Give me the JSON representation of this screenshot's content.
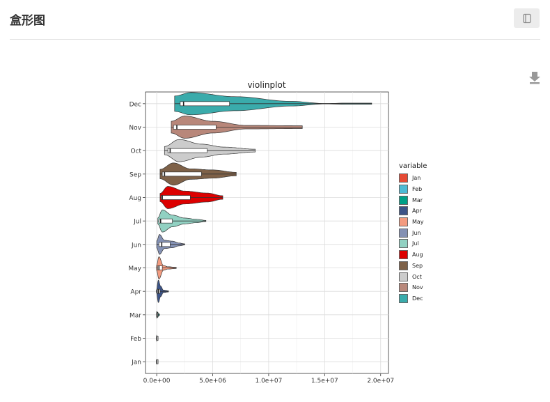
{
  "page": {
    "title": "盒形图"
  },
  "icons": {
    "notebook": "notebook-icon",
    "download": "download-icon"
  },
  "chart_data": {
    "type": "violin",
    "orientation": "horizontal",
    "title": "violinplot",
    "xlabel": "",
    "ylabel": "",
    "xlim": [
      -1000000,
      20700000
    ],
    "x_ticks": [
      0,
      5000000,
      10000000,
      15000000,
      20000000
    ],
    "x_tick_labels": [
      "0.0e+00",
      "5.0e+06",
      "1.0e+07",
      "1.5e+07",
      "2.0e+07"
    ],
    "categories": [
      "Jan",
      "Feb",
      "Mar",
      "Apr",
      "May",
      "Jun",
      "Jul",
      "Aug",
      "Sep",
      "Oct",
      "Nov",
      "Dec"
    ],
    "legend_title": "variable",
    "legend_position": "right",
    "grid": true,
    "colors": {
      "Jan": "#E64B35",
      "Feb": "#4DBBD5",
      "Mar": "#00A087",
      "Apr": "#3C5488",
      "May": "#F39B7F",
      "Jun": "#8491B4",
      "Jul": "#91D1C2",
      "Aug": "#DC0000",
      "Sep": "#7E6148",
      "Oct": "#CCCCCC",
      "Nov": "#B8877A",
      "Dec": "#3AABAB"
    },
    "series": [
      {
        "name": "Jan",
        "min": -10000,
        "q1": 0,
        "median": 5000,
        "q3": 20000,
        "max": 60000,
        "density": [
          [
            0,
            0.2
          ],
          [
            30000,
            0.1
          ],
          [
            60000,
            0.05
          ]
        ]
      },
      {
        "name": "Feb",
        "min": -10000,
        "q1": 0,
        "median": 8000,
        "q3": 30000,
        "max": 90000,
        "density": [
          [
            0,
            0.25
          ],
          [
            40000,
            0.12
          ],
          [
            90000,
            0.05
          ]
        ]
      },
      {
        "name": "Mar",
        "min": -20000,
        "q1": 0,
        "median": 30000,
        "q3": 80000,
        "max": 250000,
        "density": [
          [
            0,
            0.28
          ],
          [
            80000,
            0.22
          ],
          [
            160000,
            0.1
          ],
          [
            250000,
            0.05
          ]
        ]
      },
      {
        "name": "Apr",
        "min": -30000,
        "q1": 50000,
        "median": 150000,
        "q3": 300000,
        "max": 1050000,
        "density": [
          [
            -30000,
            0.1
          ],
          [
            150000,
            0.95
          ],
          [
            350000,
            0.45
          ],
          [
            600000,
            0.1
          ],
          [
            1050000,
            0.05
          ]
        ]
      },
      {
        "name": "May",
        "min": -20000,
        "q1": 80000,
        "median": 200000,
        "q3": 500000,
        "max": 1750000,
        "density": [
          [
            -20000,
            0.2
          ],
          [
            200000,
            0.95
          ],
          [
            600000,
            0.2
          ],
          [
            1000000,
            0.1
          ],
          [
            1750000,
            0.05
          ]
        ]
      },
      {
        "name": "Jun",
        "min": 0,
        "q1": 200000,
        "median": 450000,
        "q3": 1200000,
        "max": 2500000,
        "density": [
          [
            0,
            0.3
          ],
          [
            250000,
            0.85
          ],
          [
            700000,
            0.35
          ],
          [
            1400000,
            0.28
          ],
          [
            2000000,
            0.12
          ],
          [
            2500000,
            0.05
          ]
        ]
      },
      {
        "name": "Jul",
        "min": 100000,
        "q1": 200000,
        "median": 350000,
        "q3": 1400000,
        "max": 4400000,
        "density": [
          [
            100000,
            0.25
          ],
          [
            500000,
            0.95
          ],
          [
            1400000,
            0.5
          ],
          [
            2500000,
            0.25
          ],
          [
            3500000,
            0.15
          ],
          [
            4400000,
            0.05
          ]
        ]
      },
      {
        "name": "Aug",
        "min": 300000,
        "q1": 400000,
        "median": 500000,
        "q3": 3000000,
        "max": 5900000,
        "density": [
          [
            300000,
            0.35
          ],
          [
            1000000,
            0.95
          ],
          [
            2500000,
            0.55
          ],
          [
            4500000,
            0.38
          ],
          [
            5900000,
            0.15
          ]
        ]
      },
      {
        "name": "Sep",
        "min": 300000,
        "q1": 500000,
        "median": 700000,
        "q3": 4000000,
        "max": 7100000,
        "density": [
          [
            300000,
            0.4
          ],
          [
            1500000,
            0.95
          ],
          [
            3000000,
            0.45
          ],
          [
            5000000,
            0.35
          ],
          [
            7100000,
            0.15
          ]
        ]
      },
      {
        "name": "Oct",
        "min": 700000,
        "q1": 1000000,
        "median": 1200000,
        "q3": 4500000,
        "max": 8800000,
        "density": [
          [
            700000,
            0.35
          ],
          [
            2000000,
            0.95
          ],
          [
            4000000,
            0.55
          ],
          [
            6000000,
            0.3
          ],
          [
            8800000,
            0.12
          ]
        ]
      },
      {
        "name": "Nov",
        "min": 1300000,
        "q1": 1500000,
        "median": 1800000,
        "q3": 5300000,
        "max": 13000000,
        "density": [
          [
            1300000,
            0.5
          ],
          [
            2500000,
            0.95
          ],
          [
            5000000,
            0.5
          ],
          [
            8000000,
            0.15
          ],
          [
            13000000,
            0.12
          ]
        ]
      },
      {
        "name": "Dec",
        "min": 1600000,
        "q1": 2100000,
        "median": 2400000,
        "q3": 6500000,
        "max": 19200000,
        "density": [
          [
            1600000,
            0.65
          ],
          [
            3000000,
            0.95
          ],
          [
            7000000,
            0.6
          ],
          [
            12000000,
            0.2
          ],
          [
            15000000,
            0.02
          ],
          [
            17000000,
            0.05
          ],
          [
            19200000,
            0.05
          ]
        ]
      }
    ]
  }
}
